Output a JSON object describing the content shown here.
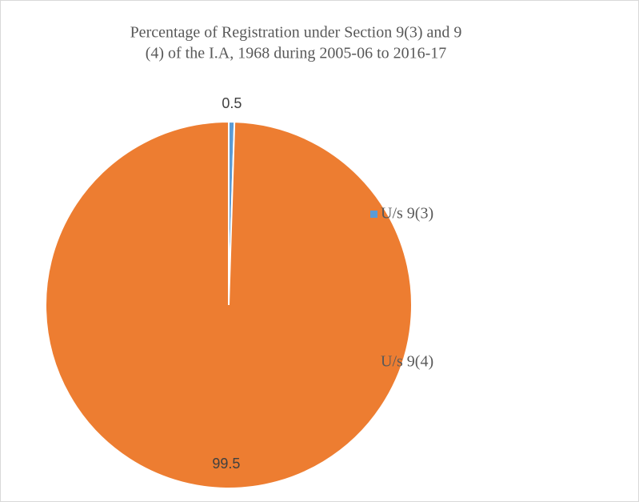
{
  "chart_data": {
    "type": "pie",
    "title": [
      "Percentage of  Registration under Section 9(3) and 9",
      "(4) of the I.A, 1968 during 2005-06 to 2016-17"
    ],
    "categories": [
      "U/s 9(3)",
      "U/s 9(4)"
    ],
    "values": [
      0.5,
      99.5
    ],
    "colors": [
      "#5b9bd5",
      "#ed7d31"
    ],
    "legend": "right"
  }
}
